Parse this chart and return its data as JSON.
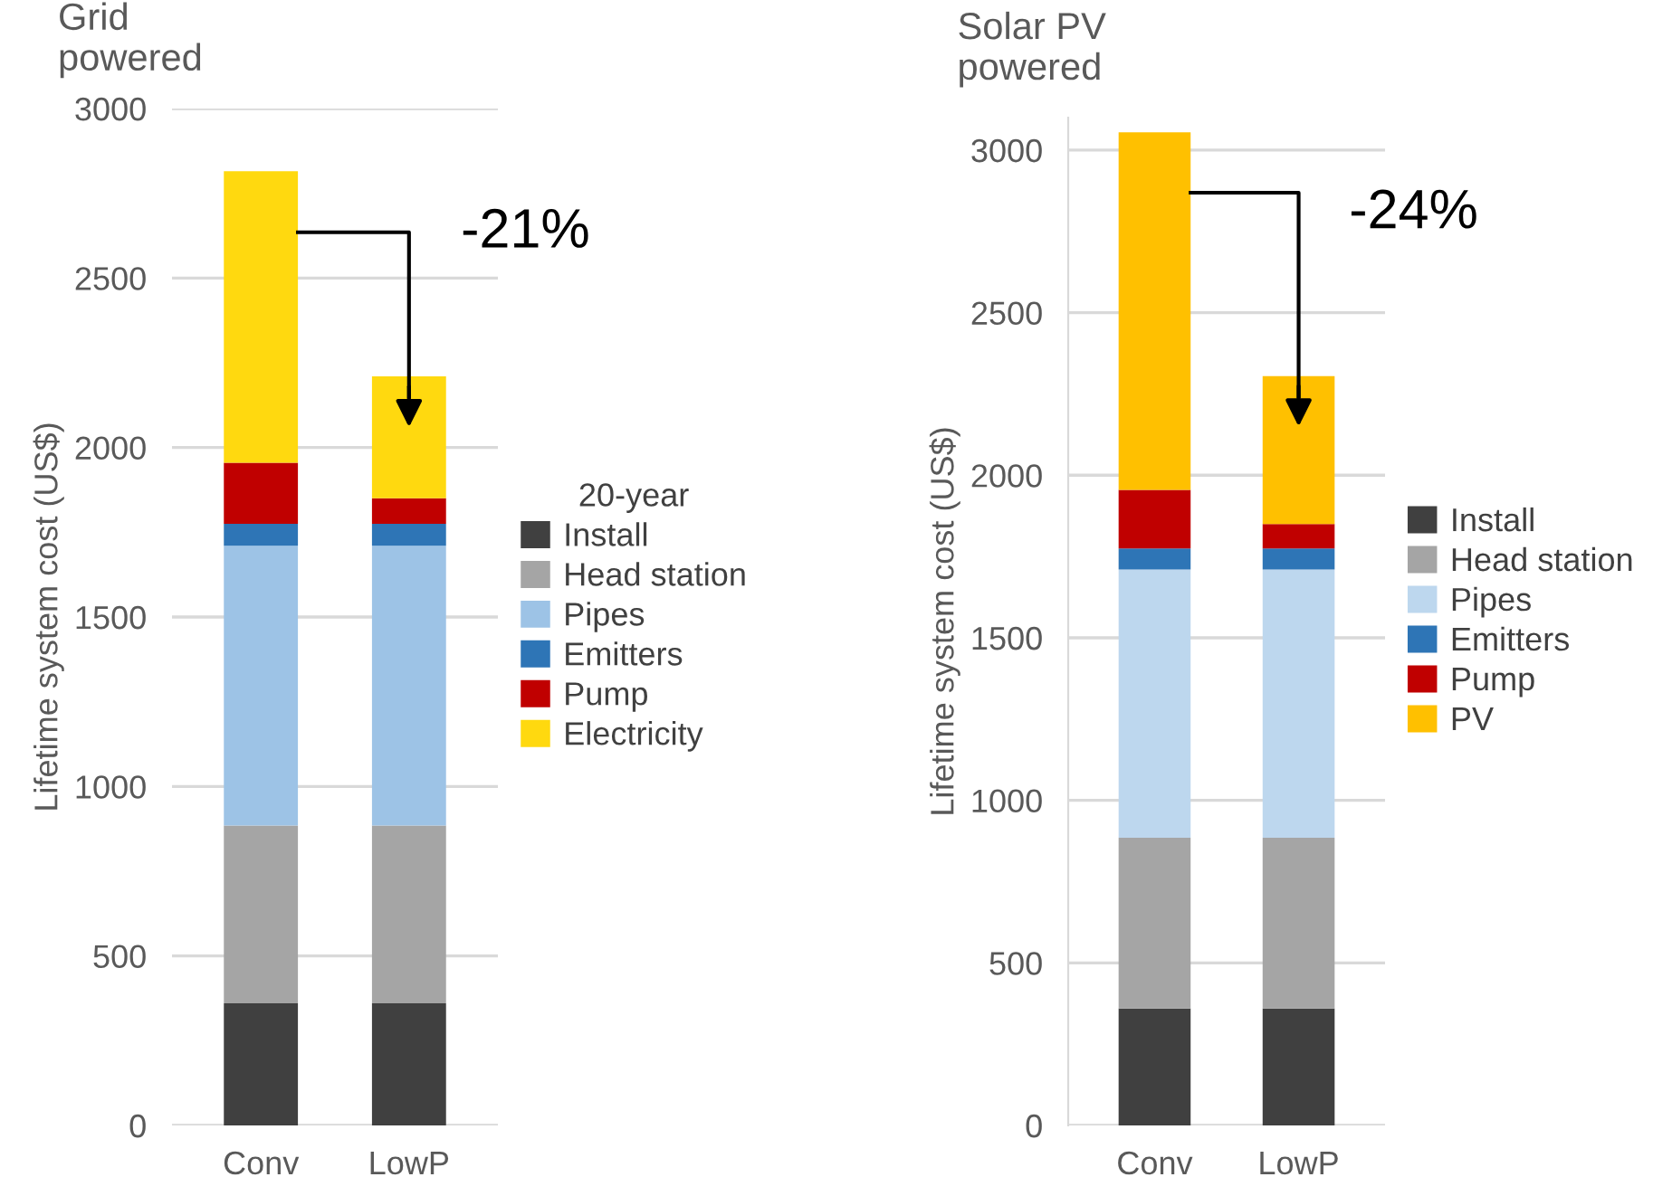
{
  "chart_data": [
    {
      "type": "bar",
      "title": "Grid\npowered",
      "ylabel": "Lifetime system cost (US$)",
      "legend_title": "20-year",
      "categories": [
        "Conv",
        "LowP"
      ],
      "stacked": true,
      "ylim": [
        0,
        3000
      ],
      "yticks": [
        0,
        500,
        1000,
        1500,
        2000,
        2500,
        3000
      ],
      "grid": "y",
      "legend": "right",
      "annotations": [
        "-21%"
      ],
      "series": [
        {
          "name": "Install",
          "color": "#404040",
          "values": [
            360,
            360
          ]
        },
        {
          "name": "Head station",
          "color": "#a5a5a5",
          "values": [
            525,
            525
          ]
        },
        {
          "name": "Pipes",
          "color": "#9dc3e6",
          "values": [
            825,
            825
          ]
        },
        {
          "name": "Emitters",
          "color": "#2e75b6",
          "values": [
            65,
            65
          ]
        },
        {
          "name": "Pump",
          "color": "#c00000",
          "values": [
            180,
            75
          ]
        },
        {
          "name": "Electricity",
          "color": "#ffd90f",
          "values": [
            860,
            360
          ]
        }
      ]
    },
    {
      "type": "bar",
      "title": "Solar PV\npowered",
      "ylabel": "Lifetime system cost (US$)",
      "categories": [
        "Conv",
        "LowP"
      ],
      "stacked": true,
      "ylim": [
        0,
        3100
      ],
      "yticks": [
        0,
        500,
        1000,
        1500,
        2000,
        2500,
        3000
      ],
      "grid": "y",
      "legend": "right",
      "annotations": [
        "-24%"
      ],
      "series": [
        {
          "name": "Install",
          "color": "#404040",
          "values": [
            360,
            360
          ]
        },
        {
          "name": "Head station",
          "color": "#a5a5a5",
          "values": [
            525,
            525
          ]
        },
        {
          "name": "Pipes",
          "color": "#bdd7ee",
          "values": [
            825,
            825
          ]
        },
        {
          "name": "Emitters",
          "color": "#2e75b6",
          "values": [
            65,
            65
          ]
        },
        {
          "name": "Pump",
          "color": "#c00000",
          "values": [
            180,
            75
          ]
        },
        {
          "name": "PV",
          "color": "#ffc000",
          "values": [
            1100,
            455
          ]
        }
      ]
    }
  ]
}
